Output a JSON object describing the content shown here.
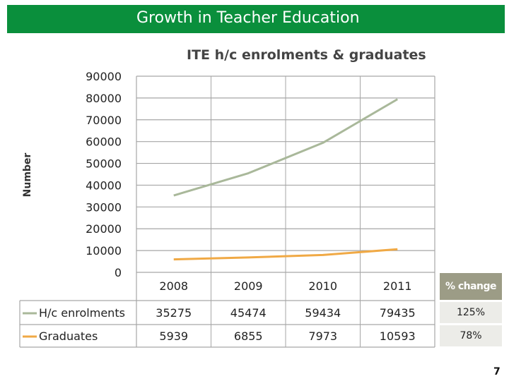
{
  "slide": {
    "title": "Growth in Teacher Education",
    "page_number": "7"
  },
  "colors": {
    "banner": "#0a8f3c",
    "enrolments_line": "#a9b89a",
    "graduates_line": "#f0a945",
    "grid": "#a6a6a6",
    "text": "#222222"
  },
  "chart_data": {
    "type": "line",
    "title": "ITE h/c enrolments & graduates",
    "xlabel": "",
    "ylabel": "Number",
    "ylim": [
      0,
      90000
    ],
    "yticks": [
      0,
      10000,
      20000,
      30000,
      40000,
      50000,
      60000,
      70000,
      80000,
      90000
    ],
    "categories": [
      "2008",
      "2009",
      "2010",
      "2011"
    ],
    "grid": true,
    "legend": "data-table",
    "series": [
      {
        "name": "H/c enrolments",
        "values": [
          35275,
          45474,
          59434,
          79435
        ],
        "labels": [
          "35275",
          "45474",
          "59434",
          "79435"
        ]
      },
      {
        "name": "Graduates",
        "values": [
          5939,
          6855,
          7973,
          10593
        ],
        "labels": [
          "5939",
          "6855",
          "7973",
          "10593"
        ]
      }
    ]
  },
  "pct_change": {
    "header": "% change",
    "values": [
      "125%",
      "78%"
    ]
  }
}
